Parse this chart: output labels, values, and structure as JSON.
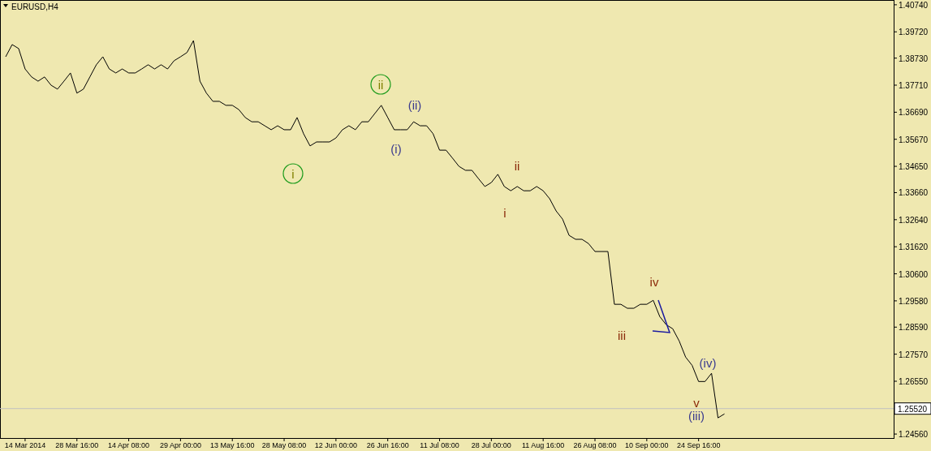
{
  "chart_data": {
    "type": "line",
    "title": "EURUSD,H4",
    "categories": [
      null,
      null,
      null,
      "14 Mar 2014",
      null,
      null,
      null,
      null,
      null,
      null,
      null,
      "28 Mar 16:00",
      null,
      null,
      null,
      null,
      null,
      null,
      null,
      "14 Apr 08:00",
      null,
      null,
      null,
      null,
      null,
      null,
      null,
      "29 Apr 00:00",
      null,
      null,
      null,
      null,
      null,
      null,
      null,
      "13 May 16:00",
      null,
      null,
      null,
      null,
      null,
      null,
      null,
      "28 May 08:00",
      null,
      null,
      null,
      null,
      null,
      null,
      null,
      "12 Jun 00:00",
      null,
      null,
      null,
      null,
      null,
      null,
      null,
      "26 Jun 16:00",
      null,
      null,
      null,
      null,
      null,
      null,
      null,
      "11 Jul 08:00",
      null,
      null,
      null,
      null,
      null,
      null,
      null,
      "28 Jul 00:00",
      null,
      null,
      null,
      null,
      null,
      null,
      null,
      "11 Aug 16:00",
      null,
      null,
      null,
      null,
      null,
      null,
      null,
      "26 Aug 08:00",
      null,
      null,
      null,
      null,
      null,
      null,
      null,
      "10 Sep 00:00",
      null,
      null,
      null,
      null,
      null,
      null,
      null,
      "24 Sep 16:00",
      null,
      null,
      null,
      null,
      null,
      null,
      null,
      null,
      null,
      null,
      null,
      null,
      null,
      null,
      null,
      null,
      null,
      null,
      null,
      null,
      null,
      null,
      null,
      null,
      null,
      null,
      null,
      null,
      null,
      null
    ],
    "series": [
      {
        "color": "#000000",
        "values": [
          1.3878,
          1.3924,
          1.3909,
          1.3832,
          1.3802,
          1.3786,
          1.3802,
          1.3771,
          1.3756,
          1.3786,
          1.3817,
          1.3741,
          1.3756,
          1.3802,
          1.3848,
          1.3878,
          1.3832,
          1.3817,
          1.3832,
          1.3817,
          1.3817,
          1.3832,
          1.3848,
          1.3832,
          1.3848,
          1.3832,
          1.3863,
          1.3878,
          1.3894,
          1.3939,
          1.3786,
          1.3741,
          1.371,
          1.371,
          1.3695,
          1.3695,
          1.3679,
          1.3649,
          1.3633,
          1.3633,
          1.3618,
          1.3603,
          1.3618,
          1.3603,
          1.3603,
          1.3649,
          1.3588,
          1.3542,
          1.3557,
          1.3557,
          1.3557,
          1.3572,
          1.3603,
          1.3618,
          1.3603,
          1.3633,
          1.3633,
          1.3664,
          1.3695,
          1.3649,
          1.3603,
          1.3603,
          1.3603,
          1.3633,
          1.3618,
          1.3618,
          1.3588,
          1.3526,
          1.3526,
          1.3496,
          1.3465,
          1.345,
          1.345,
          1.3419,
          1.3389,
          1.3404,
          1.3435,
          1.3389,
          1.3373,
          1.3389,
          1.3373,
          1.3373,
          1.3389,
          1.3373,
          1.3343,
          1.3297,
          1.3266,
          1.3205,
          1.319,
          1.319,
          1.3174,
          1.3144,
          1.3144,
          1.3144,
          1.2945,
          1.2945,
          1.293,
          1.293,
          1.2945,
          1.2945,
          1.296,
          1.2899,
          1.2868,
          1.2853,
          1.2807,
          1.2746,
          1.2715,
          1.2654,
          1.2654,
          1.2685,
          1.2517,
          1.2532,
          null,
          null,
          null,
          null,
          null,
          null,
          null,
          null,
          null,
          null,
          null,
          null,
          null,
          null,
          null,
          null,
          null,
          null,
          null,
          null,
          null,
          null,
          null,
          null,
          null,
          null
        ]
      }
    ],
    "ylim": [
      1.2441,
      1.4092
    ],
    "yticks": [
      {
        "value": 1.2456,
        "label": "1.24560"
      },
      {
        "value": 1.2655,
        "label": "1.26550"
      },
      {
        "value": 1.2757,
        "label": "1.27570"
      },
      {
        "value": 1.2859,
        "label": "1.28590"
      },
      {
        "value": 1.2958,
        "label": "1.29580"
      },
      {
        "value": 1.306,
        "label": "1.30600"
      },
      {
        "value": 1.3162,
        "label": "1.31620"
      },
      {
        "value": 1.3264,
        "label": "1.32640"
      },
      {
        "value": 1.3366,
        "label": "1.33660"
      },
      {
        "value": 1.3465,
        "label": "1.34650"
      },
      {
        "value": 1.3567,
        "label": "1.35670"
      },
      {
        "value": 1.3669,
        "label": "1.36690"
      },
      {
        "value": 1.3771,
        "label": "1.37710"
      },
      {
        "value": 1.3873,
        "label": "1.38730"
      },
      {
        "value": 1.3972,
        "label": "1.39720"
      },
      {
        "value": 1.4074,
        "label": "1.40740"
      }
    ],
    "ref_lines": [
      {
        "axis": "y",
        "value": 1.2552,
        "label": "1.25520",
        "color": "#c0c0c0"
      }
    ],
    "annotations": [
      "ii",
      "i",
      "(i)",
      "(ii)",
      "ii",
      "i",
      "iv",
      "iii",
      "(iv)",
      "v",
      "(iii)"
    ],
    "grid": false
  }
}
